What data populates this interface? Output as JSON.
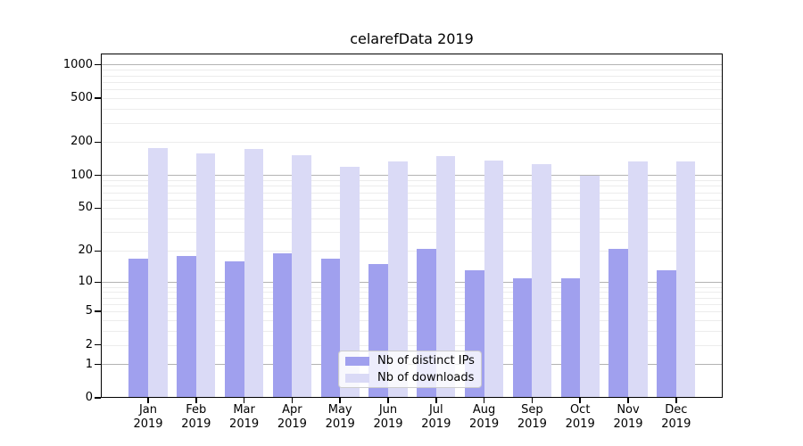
{
  "chart_data": {
    "type": "bar",
    "title": "celarefData 2019",
    "x_categories": [
      "Jan",
      "Feb",
      "Mar",
      "Apr",
      "May",
      "Jun",
      "Jul",
      "Aug",
      "Sep",
      "Oct",
      "Nov",
      "Dec"
    ],
    "x_year": "2019",
    "yscale": "log1p",
    "ylim": [
      0,
      1290
    ],
    "yticks": [
      0,
      1,
      2,
      5,
      10,
      20,
      50,
      100,
      200,
      500,
      1000
    ],
    "major_gridline_values": [
      1,
      10,
      100,
      1000
    ],
    "minor_gridline_multiples": [
      2,
      3,
      4,
      5,
      6,
      7,
      8,
      9
    ],
    "grid": true,
    "legend_position": "lower center",
    "series": [
      {
        "name": "Nb of distinct IPs",
        "color": "#a0a0ee",
        "values": [
          17,
          18,
          16,
          19,
          17,
          15,
          21,
          13,
          11,
          11,
          21,
          13
        ]
      },
      {
        "name": "Nb of downloads",
        "color": "#dadaf6",
        "values": [
          176,
          159,
          172,
          152,
          119,
          134,
          150,
          136,
          126,
          99,
          133,
          133
        ]
      }
    ],
    "colors": {
      "axis": "#000000",
      "major_grid": "#b3b3b3",
      "minor_grid": "#ececec",
      "background": "#ffffff"
    }
  }
}
